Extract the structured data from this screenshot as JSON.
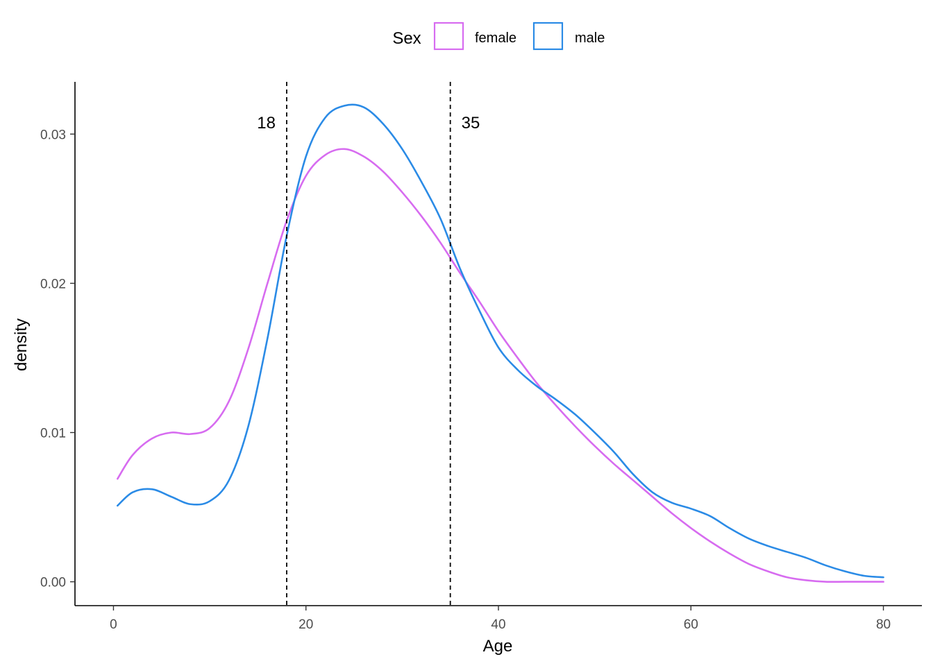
{
  "chart_data": {
    "type": "line",
    "xlabel": "Age",
    "ylabel": "density",
    "xlim": [
      -4,
      84
    ],
    "ylim": [
      -0.0016,
      0.0335
    ],
    "x_ticks": [
      0,
      20,
      40,
      60,
      80
    ],
    "y_ticks": [
      0.0,
      0.01,
      0.02,
      0.03
    ],
    "x_tick_labels": [
      "0",
      "20",
      "40",
      "60",
      "80"
    ],
    "y_tick_labels": [
      "0.00",
      "0.01",
      "0.02",
      "0.03"
    ],
    "grid": false,
    "legend": {
      "title": "Sex",
      "position": "top",
      "entries": [
        "female",
        "male"
      ]
    },
    "reference_lines": [
      {
        "x": 18,
        "label": "18"
      },
      {
        "x": 35,
        "label": "35"
      }
    ],
    "series": [
      {
        "name": "female",
        "color": "#d76cf0",
        "points": [
          [
            0.42,
            0.0069
          ],
          [
            2,
            0.0085
          ],
          [
            4,
            0.0096
          ],
          [
            6,
            0.01
          ],
          [
            8,
            0.0099
          ],
          [
            10,
            0.0103
          ],
          [
            12,
            0.0121
          ],
          [
            14,
            0.0156
          ],
          [
            16,
            0.02
          ],
          [
            18,
            0.0242
          ],
          [
            20,
            0.0272
          ],
          [
            22,
            0.0286
          ],
          [
            24,
            0.029
          ],
          [
            26,
            0.0285
          ],
          [
            28,
            0.0275
          ],
          [
            30,
            0.0261
          ],
          [
            32,
            0.0245
          ],
          [
            34,
            0.0227
          ],
          [
            36,
            0.0207
          ],
          [
            38,
            0.0188
          ],
          [
            40,
            0.0168
          ],
          [
            42,
            0.015
          ],
          [
            44,
            0.0133
          ],
          [
            46,
            0.0118
          ],
          [
            48,
            0.0104
          ],
          [
            50,
            0.0091
          ],
          [
            52,
            0.0079
          ],
          [
            54,
            0.0068
          ],
          [
            56,
            0.0057
          ],
          [
            58,
            0.0046
          ],
          [
            60,
            0.0036
          ],
          [
            62,
            0.0027
          ],
          [
            64,
            0.0019
          ],
          [
            66,
            0.0012
          ],
          [
            68,
            0.0007
          ],
          [
            70,
            0.0003
          ],
          [
            72,
            0.0001
          ],
          [
            74,
            0.0
          ],
          [
            76,
            0.0
          ],
          [
            78,
            0.0
          ],
          [
            80,
            0.0
          ]
        ]
      },
      {
        "name": "male",
        "color": "#2b8be6",
        "points": [
          [
            0.42,
            0.0051
          ],
          [
            2,
            0.006
          ],
          [
            4,
            0.0062
          ],
          [
            6,
            0.0057
          ],
          [
            8,
            0.0052
          ],
          [
            10,
            0.0054
          ],
          [
            12,
            0.0068
          ],
          [
            14,
            0.0104
          ],
          [
            16,
            0.0163
          ],
          [
            18,
            0.0232
          ],
          [
            20,
            0.0285
          ],
          [
            22,
            0.0311
          ],
          [
            24,
            0.0319
          ],
          [
            26,
            0.0318
          ],
          [
            28,
            0.0307
          ],
          [
            30,
            0.029
          ],
          [
            32,
            0.0268
          ],
          [
            34,
            0.0243
          ],
          [
            36,
            0.021
          ],
          [
            38,
            0.0182
          ],
          [
            40,
            0.0157
          ],
          [
            42,
            0.0142
          ],
          [
            44,
            0.0131
          ],
          [
            46,
            0.0122
          ],
          [
            48,
            0.0112
          ],
          [
            50,
            0.01
          ],
          [
            52,
            0.0087
          ],
          [
            54,
            0.0072
          ],
          [
            56,
            0.006
          ],
          [
            58,
            0.0053
          ],
          [
            60,
            0.0049
          ],
          [
            62,
            0.0044
          ],
          [
            64,
            0.0036
          ],
          [
            66,
            0.0029
          ],
          [
            68,
            0.0024
          ],
          [
            70,
            0.002
          ],
          [
            72,
            0.0016
          ],
          [
            74,
            0.0011
          ],
          [
            76,
            0.0007
          ],
          [
            78,
            0.0004
          ],
          [
            80,
            0.0003
          ]
        ]
      }
    ]
  }
}
